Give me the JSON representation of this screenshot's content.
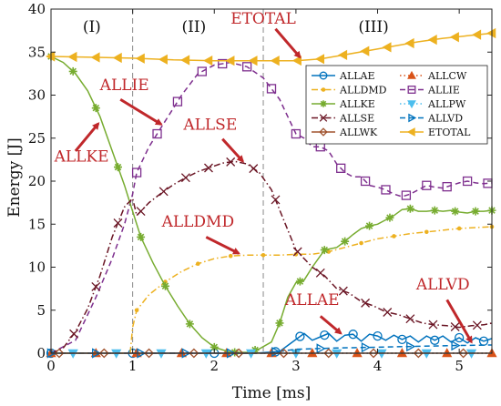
{
  "chart_data": {
    "type": "line",
    "title": "",
    "xlabel": "Time [ms]",
    "ylabel": "Energy [J]",
    "xlim": [
      0,
      5.4
    ],
    "ylim": [
      0,
      40
    ],
    "xticks": [
      0,
      1,
      2,
      3,
      4,
      5
    ],
    "yticks": [
      0,
      5,
      10,
      15,
      20,
      25,
      30,
      35,
      40
    ],
    "grid": false,
    "legend_position": "right",
    "phase_boundaries": [
      1.0,
      2.6
    ],
    "phase_labels": [
      {
        "text": "(I)",
        "x": 0.5,
        "y": 38
      },
      {
        "text": "(II)",
        "x": 1.75,
        "y": 38
      },
      {
        "text": "(III)",
        "x": 3.95,
        "y": 38
      }
    ],
    "series": [
      {
        "name": "ALLAE",
        "color": "#0072bd",
        "dash": "solid",
        "marker": "circle",
        "x": [
          0,
          0.5,
          1.0,
          1.5,
          2.0,
          2.5,
          2.8,
          2.9,
          3.0,
          3.1,
          3.2,
          3.3,
          3.4,
          3.5,
          3.6,
          3.7,
          3.8,
          3.9,
          4.0,
          4.1,
          4.2,
          4.3,
          4.4,
          4.5,
          4.6,
          4.7,
          4.8,
          4.9,
          5.0,
          5.1,
          5.2,
          5.3,
          5.4
        ],
        "y": [
          0,
          0,
          0,
          0,
          0,
          0,
          0.2,
          0.9,
          1.6,
          2.3,
          1.5,
          1.9,
          2.3,
          1.4,
          2.1,
          2.2,
          1.4,
          2.2,
          2.0,
          1.5,
          2.1,
          1.6,
          2.0,
          1.3,
          2.0,
          1.5,
          2.0,
          1.3,
          1.8,
          1.2,
          1.8,
          1.4,
          1.7
        ],
        "marker_x": [
          0,
          1.0,
          2.0,
          2.75,
          3.05,
          3.35,
          3.7,
          4.0,
          4.3,
          4.7,
          5.0,
          5.3
        ]
      },
      {
        "name": "ALLCW",
        "color": "#d95319",
        "dash": "dotted",
        "marker": "triangle-up",
        "x": [
          0,
          5.4
        ],
        "y": [
          0,
          0
        ],
        "marker_x": [
          0,
          0.55,
          1.05,
          1.6,
          2.15,
          2.7,
          3.2,
          3.75,
          4.3,
          4.85,
          5.4
        ]
      },
      {
        "name": "ALLDMD",
        "color": "#edb120",
        "dash": "dashdot",
        "marker": "dot",
        "x": [
          0,
          0.97,
          1.0,
          1.05,
          1.2,
          1.4,
          1.6,
          1.8,
          2.0,
          2.2,
          2.4,
          2.6,
          2.8,
          3.0,
          3.2,
          3.4,
          3.6,
          3.8,
          4.0,
          4.2,
          4.4,
          4.6,
          4.8,
          5.0,
          5.2,
          5.4
        ],
        "y": [
          0,
          0,
          3.0,
          5.0,
          6.8,
          8.3,
          9.5,
          10.4,
          11.0,
          11.3,
          11.4,
          11.4,
          11.4,
          11.5,
          11.5,
          11.8,
          12.3,
          12.8,
          13.3,
          13.6,
          13.9,
          14.1,
          14.3,
          14.5,
          14.6,
          14.7
        ],
        "marker_x": [
          1.05,
          1.4,
          1.8,
          2.2,
          2.6,
          3.0,
          3.4,
          3.8,
          4.2,
          4.6,
          5.0,
          5.4
        ]
      },
      {
        "name": "ALLIE",
        "color": "#7e2f8e",
        "dash": "dashed",
        "marker": "square",
        "x": [
          0,
          0.3,
          0.55,
          0.75,
          0.9,
          1.0,
          1.05,
          1.2,
          1.4,
          1.6,
          1.8,
          2.0,
          2.2,
          2.4,
          2.6,
          2.8,
          2.9,
          3.0,
          3.1,
          3.2,
          3.3,
          3.4,
          3.5,
          3.6,
          3.7,
          3.8,
          3.9,
          4.0,
          4.1,
          4.2,
          4.3,
          4.4,
          4.5,
          4.6,
          4.7,
          4.8,
          4.9,
          5.0,
          5.1,
          5.2,
          5.3,
          5.4
        ],
        "y": [
          0,
          1.5,
          6.5,
          11.0,
          15.0,
          18.5,
          21.0,
          24.0,
          27.0,
          30.0,
          32.5,
          33.5,
          33.8,
          33.3,
          32.0,
          29.5,
          27.5,
          25.5,
          25.0,
          24.0,
          24.0,
          23.5,
          22.0,
          21.0,
          20.5,
          20.5,
          19.5,
          19.3,
          19.0,
          18.5,
          18.2,
          18.5,
          19.0,
          19.5,
          19.3,
          19.2,
          19.5,
          19.8,
          20.0,
          19.8,
          19.7,
          19.8
        ],
        "marker_x": [
          1.05,
          1.3,
          1.55,
          1.85,
          2.1,
          2.4,
          2.7,
          3.0,
          3.3,
          3.55,
          3.85,
          4.1,
          4.35,
          4.6,
          4.85,
          5.1,
          5.35
        ]
      },
      {
        "name": "ALLKE",
        "color": "#77ac30",
        "dash": "solid",
        "marker": "star",
        "x": [
          0,
          0.15,
          0.3,
          0.45,
          0.6,
          0.75,
          0.9,
          1.0,
          1.1,
          1.25,
          1.4,
          1.55,
          1.7,
          1.85,
          2.0,
          2.2,
          2.4,
          2.55,
          2.7,
          2.8,
          2.9,
          3.0,
          3.1,
          3.2,
          3.35,
          3.5,
          3.6,
          3.7,
          3.8,
          3.9,
          4.0,
          4.1,
          4.2,
          4.3,
          4.4,
          4.5,
          4.6,
          4.7,
          4.8,
          4.9,
          5.0,
          5.1,
          5.2,
          5.3,
          5.4
        ],
        "y": [
          34.5,
          33.8,
          32.5,
          30.5,
          27.5,
          23.5,
          19.5,
          16.5,
          13.5,
          10.5,
          7.8,
          5.5,
          3.4,
          1.8,
          0.7,
          0.1,
          0.1,
          0.5,
          1.3,
          3.5,
          6.5,
          8.2,
          8.5,
          10.0,
          12.0,
          12.3,
          13.0,
          13.8,
          14.5,
          14.8,
          15.0,
          15.5,
          16.0,
          16.7,
          16.8,
          16.5,
          16.5,
          16.6,
          16.5,
          16.6,
          16.4,
          16.3,
          16.5,
          16.5,
          16.6
        ],
        "marker_x": [
          0,
          0.27,
          0.55,
          0.82,
          1.1,
          1.4,
          1.7,
          2.0,
          2.25,
          2.5,
          2.8,
          3.05,
          3.35,
          3.6,
          3.9,
          4.15,
          4.4,
          4.7,
          4.95,
          5.2,
          5.4
        ]
      },
      {
        "name": "ALLPW",
        "color": "#4dbeee",
        "dash": "dotted",
        "marker": "triangle-down",
        "x": [
          0,
          5.4
        ],
        "y": [
          0,
          0
        ],
        "marker_x": [
          0.27,
          0.8,
          1.35,
          1.9,
          2.45,
          3.0,
          3.5,
          4.05,
          4.6,
          5.15
        ]
      },
      {
        "name": "ALLSE",
        "color": "#6a1524",
        "dash": "dashdot",
        "marker": "x",
        "x": [
          0,
          0.15,
          0.3,
          0.45,
          0.6,
          0.75,
          0.9,
          1.0,
          1.05,
          1.2,
          1.35,
          1.5,
          1.65,
          1.8,
          1.95,
          2.1,
          2.25,
          2.4,
          2.55,
          2.7,
          2.85,
          3.0,
          3.1,
          3.2,
          3.35,
          3.5,
          3.65,
          3.8,
          3.95,
          4.1,
          4.25,
          4.4,
          4.55,
          4.7,
          4.85,
          5.0,
          5.15,
          5.3,
          5.4
        ],
        "y": [
          0,
          0.6,
          2.5,
          5.2,
          9.0,
          13.5,
          17.0,
          18.0,
          16.0,
          17.5,
          18.6,
          19.6,
          20.4,
          21.1,
          21.6,
          22.1,
          22.3,
          22.0,
          21.0,
          19.0,
          15.5,
          12.0,
          11.0,
          10.0,
          9.0,
          7.5,
          7.0,
          6.0,
          5.5,
          4.8,
          4.5,
          4.0,
          3.5,
          3.3,
          3.2,
          3.0,
          3.2,
          3.3,
          3.5
        ],
        "marker_x": [
          0.28,
          0.55,
          0.82,
          1.1,
          1.38,
          1.65,
          1.93,
          2.2,
          2.48,
          2.75,
          3.02,
          3.3,
          3.58,
          3.85,
          4.12,
          4.4,
          4.68,
          4.95,
          5.22
        ]
      },
      {
        "name": "ALLVD",
        "color": "#0072bd",
        "dash": "dashed",
        "marker": "triangle-right",
        "x": [
          0,
          2.6,
          2.8,
          3.0,
          3.5,
          4.0,
          4.5,
          5.0,
          5.4
        ],
        "y": [
          0,
          0,
          0.2,
          0.45,
          0.6,
          0.7,
          0.8,
          0.9,
          0.95
        ],
        "marker_x": [
          0,
          0.55,
          1.1,
          1.65,
          2.2,
          2.75,
          3.3,
          3.85,
          4.4,
          4.95
        ]
      },
      {
        "name": "ALLWK",
        "color": "#a0522d",
        "dash": "solid",
        "marker": "diamond",
        "x": [
          0,
          5.4
        ],
        "y": [
          0,
          0
        ],
        "marker_x": [
          0.1,
          0.65,
          1.2,
          1.75,
          2.3,
          2.85,
          3.4,
          3.95,
          4.5,
          5.05
        ]
      },
      {
        "name": "ETOTAL",
        "color": "#edb120",
        "dash": "solid",
        "marker": "triangle-left",
        "x": [
          0,
          0.5,
          1.0,
          1.5,
          2.0,
          2.5,
          2.7,
          3.0,
          3.3,
          3.6,
          3.9,
          4.2,
          4.5,
          4.8,
          5.1,
          5.4
        ],
        "y": [
          34.5,
          34.4,
          34.3,
          34.1,
          34.0,
          34.0,
          34.0,
          34.0,
          34.2,
          34.7,
          35.2,
          35.7,
          36.2,
          36.6,
          36.9,
          37.2
        ],
        "marker_x": [
          0,
          0.27,
          0.55,
          0.82,
          1.1,
          1.38,
          1.65,
          1.93,
          2.2,
          2.48,
          2.75,
          3.02,
          3.3,
          3.58,
          3.85,
          4.12,
          4.4,
          4.68,
          4.95,
          5.22,
          5.4
        ]
      }
    ],
    "annotations": [
      {
        "text": "ETOTAL",
        "anchor": "middle",
        "label_x": 2.6,
        "label_y": 38.3,
        "arrow_from": [
          2.75,
          37.7
        ],
        "arrow_to": [
          3.05,
          34.4
        ]
      },
      {
        "text": "ALLIE",
        "anchor": "middle",
        "label_x": 0.9,
        "label_y": 30.6,
        "arrow_from": [
          0.85,
          29.5
        ],
        "arrow_to": [
          1.35,
          26.6
        ]
      },
      {
        "text": "ALLSE",
        "anchor": "middle",
        "label_x": 1.95,
        "label_y": 26.0,
        "arrow_from": [
          2.1,
          24.9
        ],
        "arrow_to": [
          2.35,
          22.3
        ]
      },
      {
        "text": "ALLKE",
        "anchor": "start",
        "label_x": 0.04,
        "label_y": 22.3,
        "arrow_from": [
          0.3,
          23.5
        ],
        "arrow_to": [
          0.58,
          26.7
        ]
      },
      {
        "text": "ALLDMD",
        "anchor": "middle",
        "label_x": 1.8,
        "label_y": 14.7,
        "arrow_from": [
          1.9,
          13.5
        ],
        "arrow_to": [
          2.3,
          11.6
        ]
      },
      {
        "text": "ALLAE",
        "anchor": "middle",
        "label_x": 3.2,
        "label_y": 5.6,
        "arrow_from": [
          3.3,
          4.3
        ],
        "arrow_to": [
          3.55,
          2.3
        ]
      },
      {
        "text": "ALLVD",
        "anchor": "middle",
        "label_x": 4.8,
        "label_y": 7.4,
        "arrow_from": [
          4.85,
          6.2
        ],
        "arrow_to": [
          5.15,
          1.3
        ]
      }
    ]
  }
}
